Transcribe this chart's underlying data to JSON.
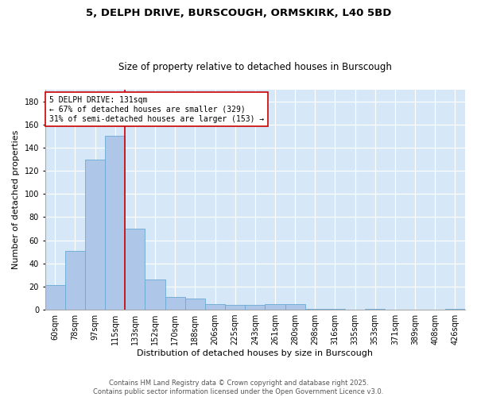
{
  "title_line1": "5, DELPH DRIVE, BURSCOUGH, ORMSKIRK, L40 5BD",
  "title_line2": "Size of property relative to detached houses in Burscough",
  "xlabel": "Distribution of detached houses by size in Burscough",
  "ylabel": "Number of detached properties",
  "categories": [
    "60sqm",
    "78sqm",
    "97sqm",
    "115sqm",
    "133sqm",
    "152sqm",
    "170sqm",
    "188sqm",
    "206sqm",
    "225sqm",
    "243sqm",
    "261sqm",
    "280sqm",
    "298sqm",
    "316sqm",
    "335sqm",
    "353sqm",
    "371sqm",
    "389sqm",
    "408sqm",
    "426sqm"
  ],
  "values": [
    21,
    51,
    130,
    150,
    70,
    26,
    11,
    10,
    5,
    4,
    4,
    5,
    5,
    1,
    1,
    0,
    1,
    0,
    0,
    0,
    1
  ],
  "bar_color": "#aec6e8",
  "bar_edge_color": "#6aaad4",
  "background_color": "#d6e8f7",
  "grid_color": "#ffffff",
  "annotation_line1": "5 DELPH DRIVE: 131sqm",
  "annotation_line2": "← 67% of detached houses are smaller (329)",
  "annotation_line3": "31% of semi-detached houses are larger (153) →",
  "vline_x_index": 3.5,
  "vline_color": "#cc0000",
  "annotation_box_color": "#cc0000",
  "ylim": [
    0,
    190
  ],
  "yticks": [
    0,
    20,
    40,
    60,
    80,
    100,
    120,
    140,
    160,
    180
  ],
  "footnote": "Contains HM Land Registry data © Crown copyright and database right 2025.\nContains public sector information licensed under the Open Government Licence v3.0.",
  "title_fontsize": 9.5,
  "subtitle_fontsize": 8.5,
  "xlabel_fontsize": 8,
  "ylabel_fontsize": 8,
  "tick_fontsize": 7,
  "annotation_fontsize": 7,
  "footnote_fontsize": 6
}
